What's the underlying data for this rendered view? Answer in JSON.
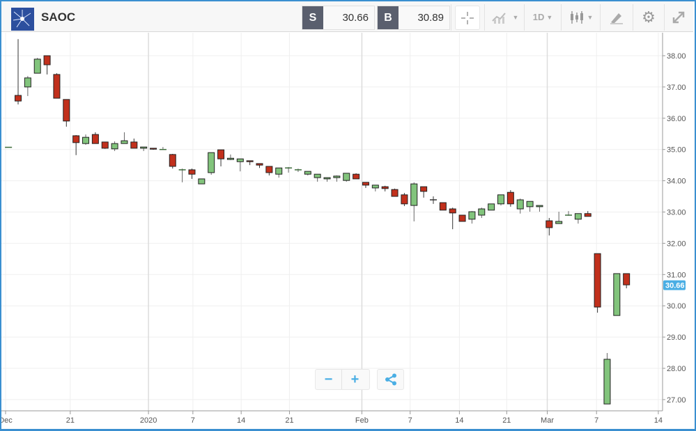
{
  "header": {
    "symbol": "SAOC",
    "sell": {
      "label": "S",
      "value": "30.66"
    },
    "buy": {
      "label": "B",
      "value": "30.89"
    },
    "tools": [
      {
        "name": "crosshair-icon"
      },
      {
        "name": "chart-type-icon"
      },
      {
        "name": "interval",
        "label": "1D"
      },
      {
        "name": "candlestick-icon"
      },
      {
        "name": "drawing-icon"
      },
      {
        "name": "gear-icon"
      },
      {
        "name": "expand-icon"
      }
    ]
  },
  "zoom_controls": {
    "minus": "−",
    "plus": "+"
  },
  "colors": {
    "up": "#82c47c",
    "down": "#c1301c",
    "frame": "#3a8fd0",
    "price_tag": "#4aaee4"
  },
  "chart_data": {
    "type": "candlestick",
    "y_ticks": [
      "38.00",
      "37.00",
      "36.00",
      "35.00",
      "34.00",
      "33.00",
      "32.00",
      "31.00",
      "30.00",
      "29.00",
      "28.00",
      "27.00"
    ],
    "ylim": [
      26.62,
      38.73
    ],
    "current_price": "30.66",
    "x_ticks": [
      {
        "label": "Dec",
        "index": -1.3
      },
      {
        "label": "21",
        "index": 5.4
      },
      {
        "label": "2020",
        "index": 13.5,
        "major": true
      },
      {
        "label": "7",
        "index": 18.1
      },
      {
        "label": "14",
        "index": 23.1
      },
      {
        "label": "21",
        "index": 28.1
      },
      {
        "label": "Feb",
        "index": 35.6,
        "major": true
      },
      {
        "label": "7",
        "index": 40.6
      },
      {
        "label": "14",
        "index": 45.7
      },
      {
        "label": "21",
        "index": 50.6
      },
      {
        "label": "Mar",
        "index": 54.8,
        "major": true
      },
      {
        "label": "7",
        "index": 59.9
      },
      {
        "label": "14",
        "index": 66.3
      }
    ],
    "candles": [
      [
        -1,
        35.07,
        35.07,
        35.07,
        35.07
      ],
      [
        0,
        36.73,
        38.53,
        36.44,
        36.55
      ],
      [
        1,
        37.0,
        37.35,
        36.71,
        37.29
      ],
      [
        2,
        37.44,
        37.93,
        37.44,
        37.89
      ],
      [
        3,
        38.0,
        38.0,
        37.4,
        37.71
      ],
      [
        4,
        37.4,
        37.44,
        36.64,
        36.64
      ],
      [
        5,
        36.6,
        36.6,
        35.73,
        35.91
      ],
      [
        6,
        35.44,
        35.46,
        34.82,
        35.22
      ],
      [
        7,
        35.19,
        35.48,
        35.15,
        35.39
      ],
      [
        8,
        35.48,
        35.55,
        35.19,
        35.19
      ],
      [
        9,
        35.24,
        35.24,
        35.02,
        35.04
      ],
      [
        10,
        35.02,
        35.26,
        34.95,
        35.19
      ],
      [
        11,
        35.19,
        35.55,
        35.19,
        35.28
      ],
      [
        12,
        35.24,
        35.35,
        35.04,
        35.04
      ],
      [
        13,
        35.04,
        35.08,
        34.95,
        35.08
      ],
      [
        14,
        35.04,
        35.04,
        34.99,
        35.01
      ],
      [
        15,
        35.0,
        35.08,
        35.0,
        35.0
      ],
      [
        16,
        34.84,
        34.86,
        34.39,
        34.46
      ],
      [
        17,
        34.35,
        34.39,
        33.95,
        34.35
      ],
      [
        18,
        34.35,
        34.39,
        34.06,
        34.21
      ],
      [
        19,
        33.9,
        34.06,
        33.9,
        34.06
      ],
      [
        20,
        34.26,
        34.9,
        34.19,
        34.9
      ],
      [
        21,
        34.99,
        34.99,
        34.46,
        34.7
      ],
      [
        22,
        34.68,
        34.84,
        34.66,
        34.72
      ],
      [
        23,
        34.61,
        34.7,
        34.3,
        34.7
      ],
      [
        24,
        34.64,
        34.64,
        34.5,
        34.61
      ],
      [
        25,
        34.55,
        34.55,
        34.41,
        34.5
      ],
      [
        26,
        34.46,
        34.46,
        34.17,
        34.26
      ],
      [
        27,
        34.21,
        34.41,
        34.1,
        34.41
      ],
      [
        28,
        34.39,
        34.44,
        34.26,
        34.41
      ],
      [
        29,
        34.35,
        34.39,
        34.28,
        34.35
      ],
      [
        30,
        34.21,
        34.3,
        34.17,
        34.3
      ],
      [
        31,
        34.1,
        34.21,
        33.97,
        34.21
      ],
      [
        32,
        34.06,
        34.1,
        33.97,
        34.1
      ],
      [
        33,
        34.1,
        34.17,
        33.97,
        34.15
      ],
      [
        34,
        34.01,
        34.24,
        33.97,
        34.24
      ],
      [
        35,
        34.21,
        34.24,
        34.06,
        34.06
      ],
      [
        36,
        33.95,
        33.95,
        33.77,
        33.86
      ],
      [
        37,
        33.77,
        33.86,
        33.66,
        33.86
      ],
      [
        38,
        33.81,
        33.84,
        33.66,
        33.75
      ],
      [
        39,
        33.72,
        33.75,
        33.5,
        33.5
      ],
      [
        40,
        33.55,
        33.61,
        33.19,
        33.26
      ],
      [
        41,
        33.21,
        33.95,
        32.7,
        33.9
      ],
      [
        42,
        33.81,
        33.81,
        33.46,
        33.66
      ],
      [
        43,
        33.39,
        33.5,
        33.26,
        33.37
      ],
      [
        44,
        33.3,
        33.3,
        33.06,
        33.06
      ],
      [
        45,
        33.1,
        33.14,
        32.45,
        32.97
      ],
      [
        46,
        32.9,
        32.9,
        32.7,
        32.7
      ],
      [
        47,
        32.77,
        33.03,
        32.63,
        33.01
      ],
      [
        48,
        32.9,
        33.14,
        32.81,
        33.1
      ],
      [
        49,
        33.06,
        33.26,
        33.06,
        33.26
      ],
      [
        50,
        33.26,
        33.55,
        33.21,
        33.55
      ],
      [
        51,
        33.63,
        33.7,
        33.17,
        33.26
      ],
      [
        52,
        33.1,
        33.43,
        32.95,
        33.39
      ],
      [
        53,
        33.17,
        33.34,
        33.01,
        33.34
      ],
      [
        54,
        33.17,
        33.21,
        33.01,
        33.21
      ],
      [
        55,
        32.72,
        32.81,
        32.25,
        32.5
      ],
      [
        56,
        32.63,
        33.01,
        32.63,
        32.7
      ],
      [
        57,
        32.9,
        33.03,
        32.88,
        32.9
      ],
      [
        58,
        32.77,
        32.95,
        32.63,
        32.95
      ],
      [
        59,
        32.95,
        33.03,
        32.86,
        32.86
      ],
      [
        60,
        31.67,
        31.67,
        29.78,
        29.96
      ],
      [
        61,
        26.86,
        28.49,
        26.86,
        28.29
      ],
      [
        62,
        29.69,
        31.03,
        29.69,
        31.03
      ],
      [
        63,
        31.03,
        31.03,
        30.56,
        30.67
      ]
    ]
  }
}
